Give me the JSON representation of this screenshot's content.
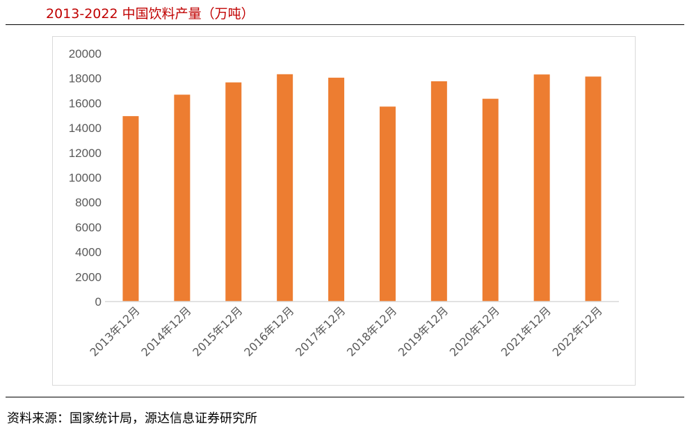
{
  "header": {
    "title": "2013-2022 中国饮料产量（万吨）"
  },
  "footer": {
    "source": "资料来源：国家统计局，源达信息证券研究所"
  },
  "colors": {
    "title": "#c00000",
    "bar": "#ed7d31",
    "axis_text": "#595959",
    "axis_line": "#d9d9d9"
  },
  "chart_data": {
    "type": "bar",
    "title": "2013-2022 中国饮料产量（万吨）",
    "xlabel": "",
    "ylabel": "",
    "categories": [
      "2013年12月",
      "2014年12月",
      "2015年12月",
      "2016年12月",
      "2017年12月",
      "2018年12月",
      "2019年12月",
      "2020年12月",
      "2021年12月",
      "2022年12月"
    ],
    "values": [
      14950,
      16680,
      17670,
      18330,
      18050,
      15720,
      17760,
      16350,
      18310,
      18140
    ],
    "ylim": [
      0,
      20000
    ],
    "yticks": [
      0,
      2000,
      4000,
      6000,
      8000,
      10000,
      12000,
      14000,
      16000,
      18000,
      20000
    ],
    "grid": false,
    "legend": "none"
  }
}
